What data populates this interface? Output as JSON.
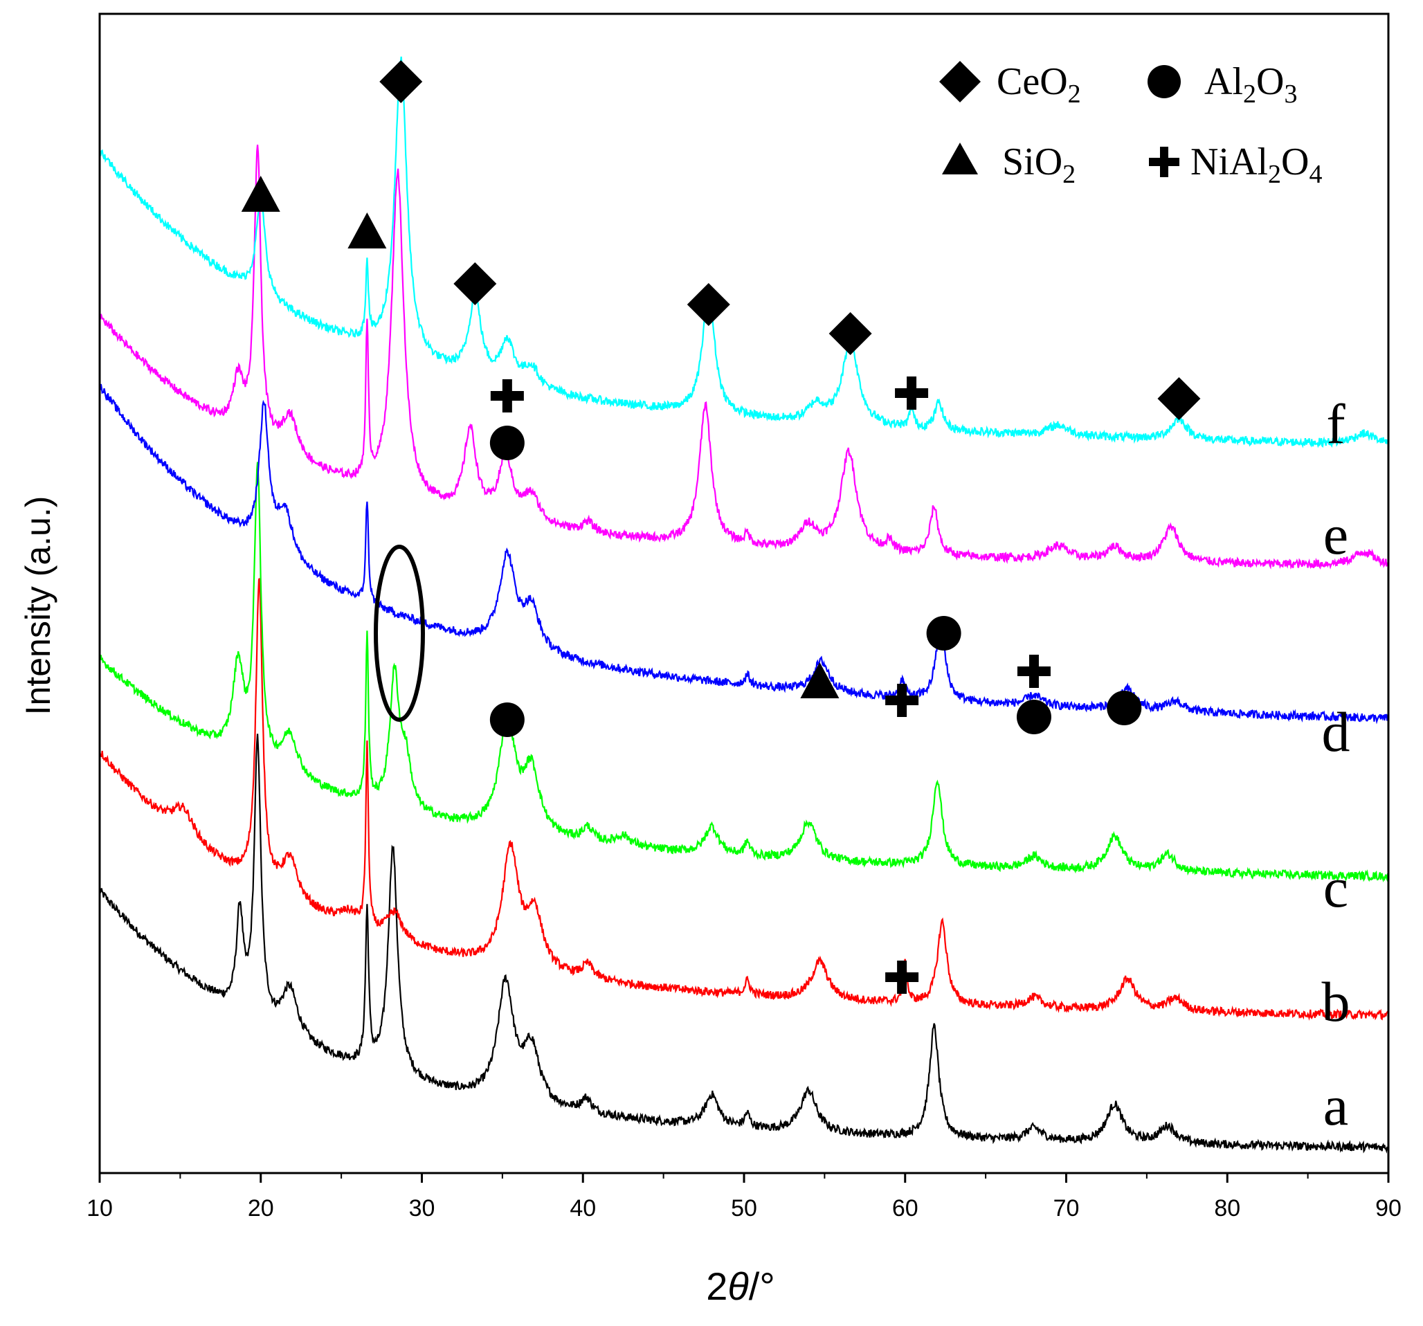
{
  "chart_data": {
    "type": "line",
    "title": "",
    "xlabel_prefix": "2",
    "xlabel_theta": "θ",
    "xlabel_suffix": "/°",
    "ylabel": "Intensity (a.u.)",
    "xlim": [
      10,
      90
    ],
    "x_ticks": [
      "10",
      "20",
      "30",
      "40",
      "50",
      "60",
      "70",
      "80",
      "90"
    ],
    "y_ticks_shown": false,
    "legend": {
      "position": "top-right",
      "entries": [
        {
          "marker": "diamond",
          "label": "CeO",
          "sub": "2"
        },
        {
          "marker": "circle",
          "label": "Al",
          "sub": "2",
          "label2": "O",
          "sub2": "3"
        },
        {
          "marker": "triangle",
          "label": "SiO",
          "sub": "2"
        },
        {
          "marker": "cross",
          "label": "NiAl",
          "sub": "2",
          "label2": "O",
          "sub2": "4"
        }
      ]
    },
    "series": [
      {
        "name": "a",
        "color": "#000000",
        "offset": 0,
        "background": {
          "start": 300,
          "mid": 80,
          "end": 10
        },
        "peaks": [
          [
            18.7,
            140,
            0.25
          ],
          [
            19.8,
            400,
            0.25
          ],
          [
            21.8,
            70,
            0.6
          ],
          [
            26.6,
            220,
            0.12
          ],
          [
            28.2,
            330,
            0.35
          ],
          [
            35.2,
            170,
            0.6
          ],
          [
            36.8,
            80,
            0.6
          ],
          [
            40.2,
            20,
            0.4
          ],
          [
            48,
            45,
            0.5
          ],
          [
            50.2,
            20,
            0.2
          ],
          [
            54,
            60,
            0.6
          ],
          [
            61.8,
            160,
            0.35
          ],
          [
            68,
            18,
            0.6
          ],
          [
            73,
            55,
            0.6
          ],
          [
            76.3,
            25,
            0.6
          ]
        ]
      },
      {
        "name": "b",
        "color": "#ff0000",
        "offset": 190,
        "background": {
          "start": 300,
          "mid": 90,
          "end": 10
        },
        "peaks": [
          [
            15.2,
            40,
            0.8
          ],
          [
            19.9,
            440,
            0.25
          ],
          [
            21.8,
            60,
            0.6
          ],
          [
            25.5,
            20,
            0.8
          ],
          [
            26.6,
            260,
            0.1
          ],
          [
            28.3,
            40,
            0.6
          ],
          [
            35.5,
            170,
            0.6
          ],
          [
            37,
            80,
            0.6
          ],
          [
            40.3,
            20,
            0.4
          ],
          [
            50.2,
            20,
            0.2
          ],
          [
            54.7,
            55,
            0.6
          ],
          [
            60,
            55,
            0.15
          ],
          [
            62.3,
            120,
            0.35
          ],
          [
            68,
            15,
            0.6
          ],
          [
            73.8,
            45,
            0.6
          ],
          [
            76.8,
            18,
            0.6
          ]
        ]
      },
      {
        "name": "c",
        "color": "#00ff00",
        "offset": 390,
        "background": {
          "start": 230,
          "mid": 95,
          "end": 10
        },
        "peaks": [
          [
            18.6,
            130,
            0.4
          ],
          [
            19.8,
            420,
            0.25
          ],
          [
            21.8,
            60,
            0.6
          ],
          [
            26.6,
            240,
            0.1
          ],
          [
            28.3,
            190,
            0.35
          ],
          [
            29,
            70,
            0.4
          ],
          [
            35.3,
            160,
            0.6
          ],
          [
            36.8,
            90,
            0.6
          ],
          [
            40.3,
            20,
            0.4
          ],
          [
            42.5,
            15,
            0.6
          ],
          [
            48,
            40,
            0.5
          ],
          [
            50.2,
            20,
            0.2
          ],
          [
            54,
            55,
            0.6
          ],
          [
            62,
            125,
            0.35
          ],
          [
            68,
            18,
            0.6
          ],
          [
            73,
            50,
            0.6
          ],
          [
            76.3,
            25,
            0.6
          ]
        ]
      },
      {
        "name": "d",
        "color": "#0000ff",
        "offset": 610,
        "background": {
          "start": 330,
          "mid": 170,
          "end": 10
        },
        "peaks": [
          [
            20.2,
            200,
            0.35
          ],
          [
            21.5,
            70,
            0.6
          ],
          [
            26.6,
            150,
            0.1
          ],
          [
            35.3,
            130,
            0.6
          ],
          [
            36.8,
            60,
            0.6
          ],
          [
            50.2,
            15,
            0.2
          ],
          [
            54.8,
            45,
            0.6
          ],
          [
            59.8,
            25,
            0.2
          ],
          [
            62.2,
            110,
            0.35
          ],
          [
            68,
            15,
            0.6
          ],
          [
            73.8,
            30,
            0.6
          ],
          [
            76.8,
            15,
            0.6
          ]
        ]
      },
      {
        "name": "e",
        "color": "#ff00ff",
        "offset": 840,
        "background": {
          "start": 290,
          "mid": 80,
          "end": 10
        },
        "peaks": [
          [
            18.6,
            75,
            0.4
          ],
          [
            19.8,
            420,
            0.25
          ],
          [
            21.8,
            60,
            0.6
          ],
          [
            26.6,
            220,
            0.1
          ],
          [
            28.5,
            470,
            0.45
          ],
          [
            33,
            120,
            0.45
          ],
          [
            35.2,
            90,
            0.5
          ],
          [
            36.8,
            40,
            0.6
          ],
          [
            40.3,
            15,
            0.4
          ],
          [
            47.6,
            200,
            0.45
          ],
          [
            50.2,
            15,
            0.2
          ],
          [
            54,
            35,
            0.6
          ],
          [
            56.5,
            145,
            0.6
          ],
          [
            59,
            15,
            0.3
          ],
          [
            61.8,
            70,
            0.3
          ],
          [
            69.5,
            20,
            0.8
          ],
          [
            73,
            20,
            0.6
          ],
          [
            76.5,
            50,
            0.6
          ],
          [
            88.5,
            20,
            0.8
          ]
        ]
      },
      {
        "name": "f",
        "color": "#00ffff",
        "offset": 1010,
        "background": {
          "start": 310,
          "mid": 130,
          "end": 10
        },
        "peaks": [
          [
            20,
            140,
            0.35
          ],
          [
            26.6,
            110,
            0.1
          ],
          [
            28.7,
            430,
            0.45
          ],
          [
            33.3,
            115,
            0.45
          ],
          [
            35.3,
            60,
            0.5
          ],
          [
            36.8,
            30,
            0.6
          ],
          [
            47.8,
            180,
            0.45
          ],
          [
            54.5,
            25,
            0.6
          ],
          [
            56.6,
            120,
            0.6
          ],
          [
            60.4,
            30,
            0.15
          ],
          [
            62.1,
            40,
            0.3
          ],
          [
            69.5,
            15,
            0.8
          ],
          [
            77,
            30,
            0.6
          ],
          [
            88.5,
            15,
            0.8
          ]
        ]
      }
    ],
    "annotations": [
      {
        "type": "ellipse",
        "x": 28.3,
        "label": ""
      }
    ]
  }
}
